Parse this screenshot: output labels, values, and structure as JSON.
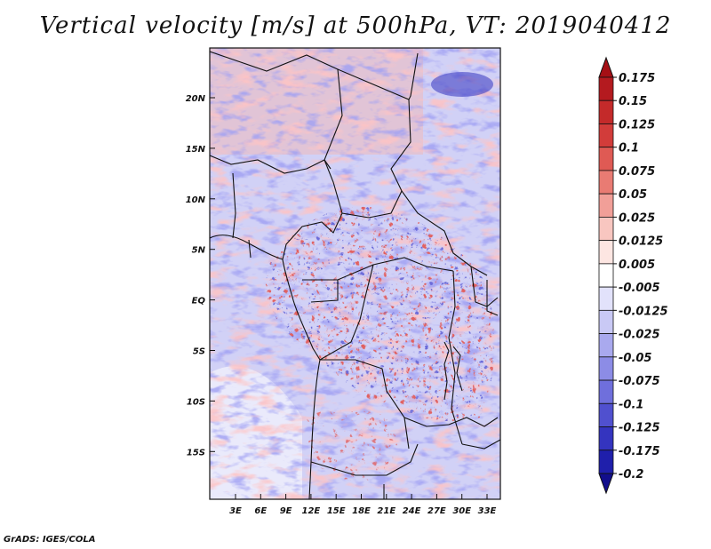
{
  "title": "Vertical velocity [m/s] at 500hPa, VT: 2019040412",
  "credit": "GrADS: IGES/COLA",
  "map": {
    "lat_labels": [
      "20N",
      "15N",
      "10N",
      "5N",
      "EQ",
      "5S",
      "10S",
      "15S"
    ],
    "lon_labels": [
      "3E",
      "6E",
      "9E",
      "12E",
      "15E",
      "18E",
      "21E",
      "24E",
      "27E",
      "30E",
      "33E"
    ]
  },
  "colorbar": {
    "labels": [
      "0.175",
      "0.15",
      "0.125",
      "0.1",
      "0.075",
      "0.05",
      "0.025",
      "0.0125",
      "0.005",
      "-0.005",
      "-0.0125",
      "-0.025",
      "-0.05",
      "-0.075",
      "-0.1",
      "-0.125",
      "-0.175",
      "-0.2"
    ],
    "colors": [
      "#a50f15",
      "#b41a1f",
      "#c42a2a",
      "#d23c3a",
      "#df5a54",
      "#e97b73",
      "#f19f98",
      "#f8c6c0",
      "#fde6e2",
      "#ffffff",
      "#e2e2fb",
      "#c9c9f5",
      "#a9a9ee",
      "#8c8ce6",
      "#6f6fdc",
      "#5050cf",
      "#3434bf",
      "#1f1fab",
      "#120e8c"
    ]
  }
}
